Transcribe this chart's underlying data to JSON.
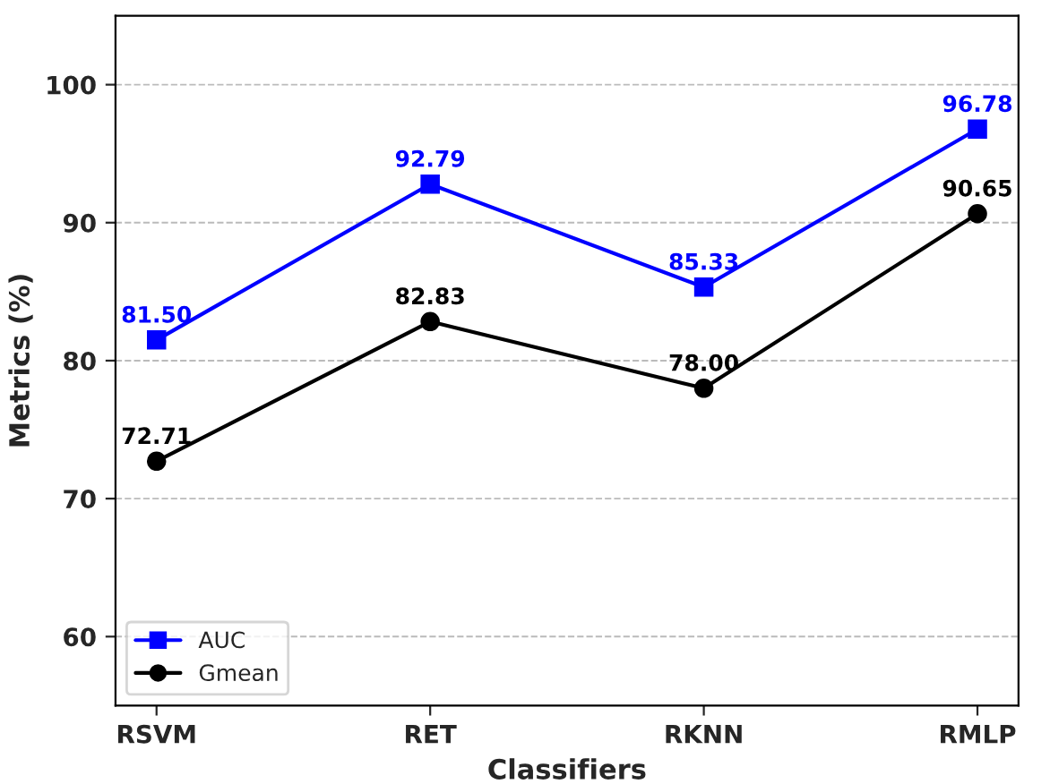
{
  "chart_data": {
    "type": "line",
    "xlabel": "Classifiers",
    "ylabel": "Metrics (%)",
    "categories": [
      "RSVM",
      "RET",
      "RKNN",
      "RMLP"
    ],
    "series": [
      {
        "name": "AUC",
        "color": "#0000ff",
        "values": [
          81.5,
          92.79,
          85.33,
          96.78
        ],
        "value_labels": [
          "81.50",
          "92.79",
          "85.33",
          "96.78"
        ],
        "marker": "square"
      },
      {
        "name": "Gmean",
        "color": "#000000",
        "values": [
          72.71,
          82.83,
          78.0,
          90.65
        ],
        "value_labels": [
          "72.71",
          "82.83",
          "78.00",
          "90.65"
        ],
        "marker": "circle"
      }
    ],
    "ylim": [
      55,
      105
    ],
    "yticks": [
      60,
      70,
      80,
      90,
      100
    ],
    "grid": "y",
    "legend": "bottom left",
    "line_style": "solid"
  }
}
